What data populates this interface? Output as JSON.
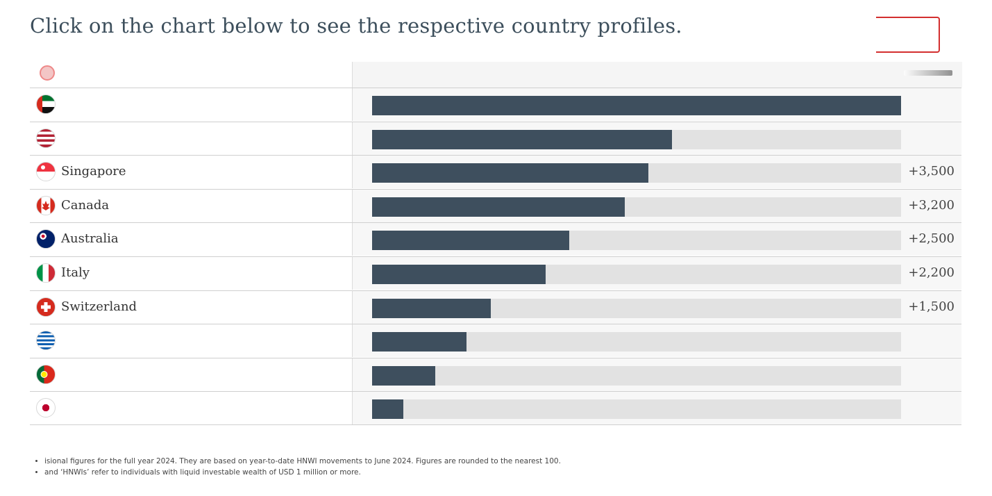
{
  "heading": "Click on the chart below to see the respective country profiles.",
  "chart_data": {
    "type": "bar",
    "orientation": "horizontal",
    "categories": [
      "",
      "",
      "Singapore",
      "Canada",
      "Australia",
      "Italy",
      "Switzerland",
      "",
      "",
      ""
    ],
    "values": [
      6700,
      3800,
      3500,
      3200,
      2500,
      2200,
      1500,
      1200,
      800,
      400
    ],
    "value_labels": [
      "",
      "",
      "+3,500",
      "+3,200",
      "+2,500",
      "+2,200",
      "+1,500",
      "",
      "",
      ""
    ],
    "xlim": [
      0,
      6700
    ],
    "flags": [
      "uae-flag-icon",
      "usa-flag-icon",
      "singapore-flag-icon",
      "canada-flag-icon",
      "australia-flag-icon",
      "italy-flag-icon",
      "switzerland-flag-icon",
      "greece-flag-icon",
      "portugal-flag-icon",
      "japan-flag-icon"
    ],
    "bar_color": "#3e4f5e",
    "track_color": "#e2e2e2",
    "highlight_color": "#d32f2f"
  },
  "footnotes": [
    "isional figures for the full year 2024. They are based on year-to-date HNWI movements to June 2024. Figures are rounded to the nearest 100.",
    "and ‘HNWIs’ refer to individuals with liquid investable wealth of USD 1 million or more."
  ]
}
